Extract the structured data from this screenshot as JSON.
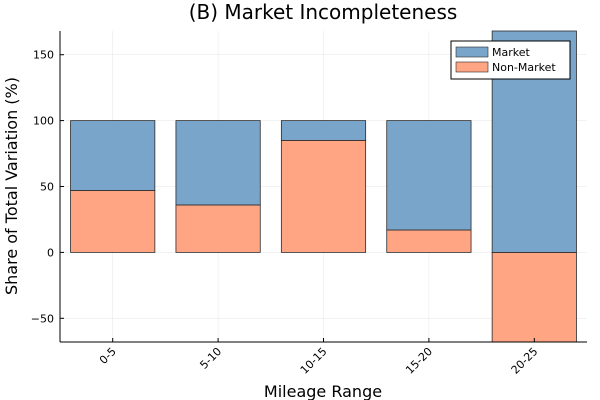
{
  "chart_data": {
    "type": "bar",
    "stacked": true,
    "title": "(B) Market Incompleteness",
    "xlabel": "Mileage Range",
    "ylabel": "Share of Total Variation (%)",
    "categories": [
      "0-5",
      "5-10",
      "10-15",
      "15-20",
      "20-25"
    ],
    "series": [
      {
        "name": "Market",
        "color": "#7aa5cb",
        "values": [
          53,
          64,
          15,
          83,
          168
        ]
      },
      {
        "name": "Non-Market",
        "color": "#ffa584",
        "values": [
          47,
          36,
          85,
          17,
          -68
        ]
      }
    ],
    "ylim": [
      -68,
      168
    ],
    "yticks": [
      -50,
      0,
      50,
      100,
      150
    ],
    "grid": true,
    "legend_position": "top-right"
  }
}
